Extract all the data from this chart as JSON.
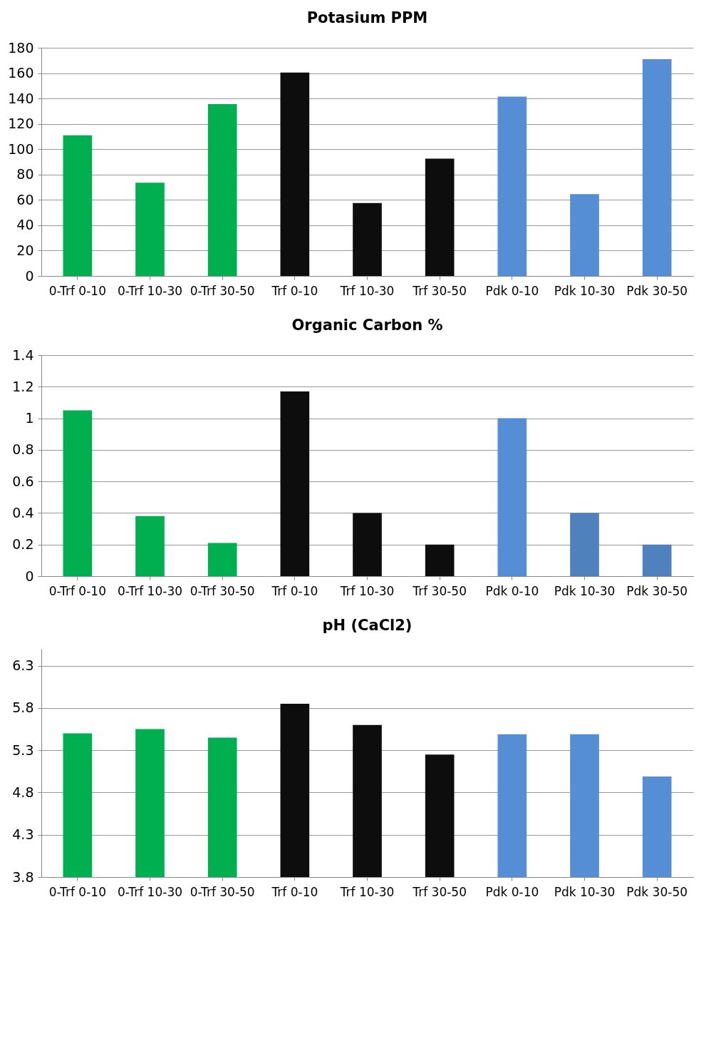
{
  "chart_data": [
    {
      "type": "bar",
      "title": "Potasium PPM",
      "categories": [
        "0-Trf 0-10",
        "0-Trf 10-30",
        "0-Trf 30-50",
        "Trf 0-10",
        "Trf 10-30",
        "Trf 30-50",
        "Pdk 0-10",
        "Pdk 10-30",
        "Pdk 30-50"
      ],
      "values": [
        111,
        73.5,
        135.5,
        160.5,
        57.5,
        92.5,
        141.5,
        64.5,
        171
      ],
      "colors": [
        "#00b050",
        "#00b050",
        "#00b050",
        "#0d0d0d",
        "#0d0d0d",
        "#0d0d0d",
        "#558ed5",
        "#558ed5",
        "#558ed5"
      ],
      "ylim": [
        0,
        180
      ],
      "yticks": [
        0,
        20,
        40,
        60,
        80,
        100,
        120,
        140,
        160,
        180
      ],
      "grid": "y"
    },
    {
      "type": "bar",
      "title": "Organic Carbon %",
      "categories": [
        "0-Trf 0-10",
        "0-Trf 10-30",
        "0-Trf 30-50",
        "Trf 0-10",
        "Trf 10-30",
        "Trf 30-50",
        "Pdk 0-10",
        "Pdk 10-30",
        "Pdk 30-50"
      ],
      "values": [
        1.05,
        0.38,
        0.21,
        1.17,
        0.4,
        0.2,
        1.0,
        0.4,
        0.2
      ],
      "colors": [
        "#00b050",
        "#00b050",
        "#00b050",
        "#0d0d0d",
        "#0d0d0d",
        "#0d0d0d",
        "#558ed5",
        "#4f81bd",
        "#4f81bd"
      ],
      "ylim": [
        0,
        1.4
      ],
      "yticks": [
        0,
        0.2,
        0.4,
        0.6,
        0.8,
        1,
        1.2,
        1.4
      ],
      "grid": "y"
    },
    {
      "type": "bar",
      "title": "pH (CaCl2)",
      "categories": [
        "0-Trf 0-10",
        "0-Trf 10-30",
        "0-Trf 30-50",
        "Trf 0-10",
        "Trf 10-30",
        "Trf 30-50",
        "Pdk 0-10",
        "Pdk 10-30",
        "Pdk 30-50"
      ],
      "values": [
        5.5,
        5.55,
        5.45,
        5.85,
        5.6,
        5.25,
        5.49,
        5.49,
        4.99
      ],
      "colors": [
        "#00b050",
        "#00b050",
        "#00b050",
        "#0d0d0d",
        "#0d0d0d",
        "#0d0d0d",
        "#558ed5",
        "#558ed5",
        "#558ed5"
      ],
      "ylim": [
        3.8,
        6.5
      ],
      "yticks": [
        3.8,
        4.3,
        4.8,
        5.3,
        5.8,
        6.3
      ],
      "grid": "y"
    }
  ]
}
